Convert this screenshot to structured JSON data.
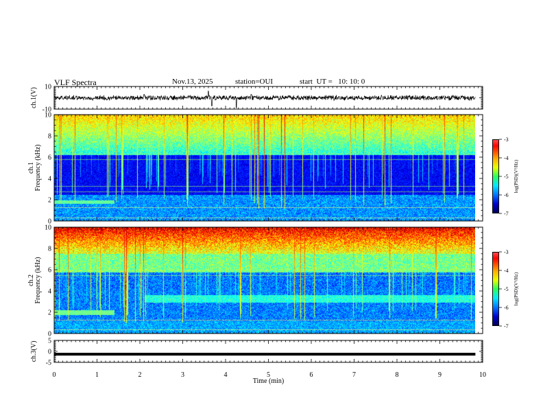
{
  "header": {
    "title": "VLF Spectra",
    "date": "Nov.13, 2025",
    "station": "station=OUI",
    "start": "start  UT =   10: 10: 0"
  },
  "chart_data": [
    {
      "type": "line",
      "name": "ch1-waveform",
      "ylabel": "ch.1(V)",
      "ylim": [
        -10,
        10
      ],
      "y_ticks": [
        "10",
        "-10"
      ],
      "baseline": 0,
      "approx_amplitude": 2.5,
      "spikes": [
        {
          "t": 2.1,
          "v": 3
        },
        {
          "t": 3.6,
          "v": 6
        },
        {
          "t": 3.68,
          "v": -7
        },
        {
          "t": 4.25,
          "v": -9
        },
        {
          "t": 4.6,
          "v": 3
        }
      ]
    },
    {
      "type": "heatmap",
      "name": "ch1-spectrogram",
      "ylabel": "ch.1\nFrequency (kHz)",
      "ylim": [
        0,
        10
      ],
      "y_ticks": [
        "0",
        "2",
        "4",
        "6",
        "8",
        "10"
      ],
      "colorbar": {
        "label": "log(PSD)(V²/Hz)",
        "range": [
          -7,
          -3
        ],
        "ticks": [
          "-3",
          "-4",
          "-5",
          "-6",
          "-7"
        ]
      },
      "features": {
        "quiet_band_khz": [
          2.5,
          5.8
        ],
        "tone_khz": 1.8,
        "tone_end_min": 1.4,
        "lines_khz": [
          0.3,
          1.3,
          2.8,
          3.3,
          5.8,
          6.3
        ]
      }
    },
    {
      "type": "heatmap",
      "name": "ch2-spectrogram",
      "ylabel": "ch.2\nFrequency (kHz)",
      "ylim": [
        0,
        10
      ],
      "y_ticks": [
        "0",
        "2",
        "4",
        "6",
        "8",
        "10"
      ],
      "colorbar": {
        "label": "log(PSD)(V²/Hz)",
        "range": [
          -7,
          -3
        ],
        "ticks": [
          "-3",
          "-4",
          "-5",
          "-6",
          "-7"
        ]
      },
      "features": {
        "tone_khz": 2.0,
        "tone_end_min": 1.4,
        "band_khz": 3.3,
        "band_start_min": 2.1,
        "lines_khz": [
          0.4,
          1.3,
          5.5,
          6.0
        ]
      }
    },
    {
      "type": "line",
      "name": "ch3-waveform",
      "ylabel": "ch.3(V)",
      "ylim": [
        -5,
        5
      ],
      "y_ticks": [
        "5",
        "0",
        "-5"
      ],
      "value": -1.3
    }
  ],
  "x_axis": {
    "label": "Time  (min)",
    "range": [
      0,
      10
    ],
    "ticks": [
      "0",
      "1",
      "2",
      "3",
      "4",
      "5",
      "6",
      "7",
      "8",
      "9",
      "10"
    ],
    "data_end": 9.83
  },
  "colors": {
    "frame": "#000000",
    "background": "#ffffff"
  }
}
